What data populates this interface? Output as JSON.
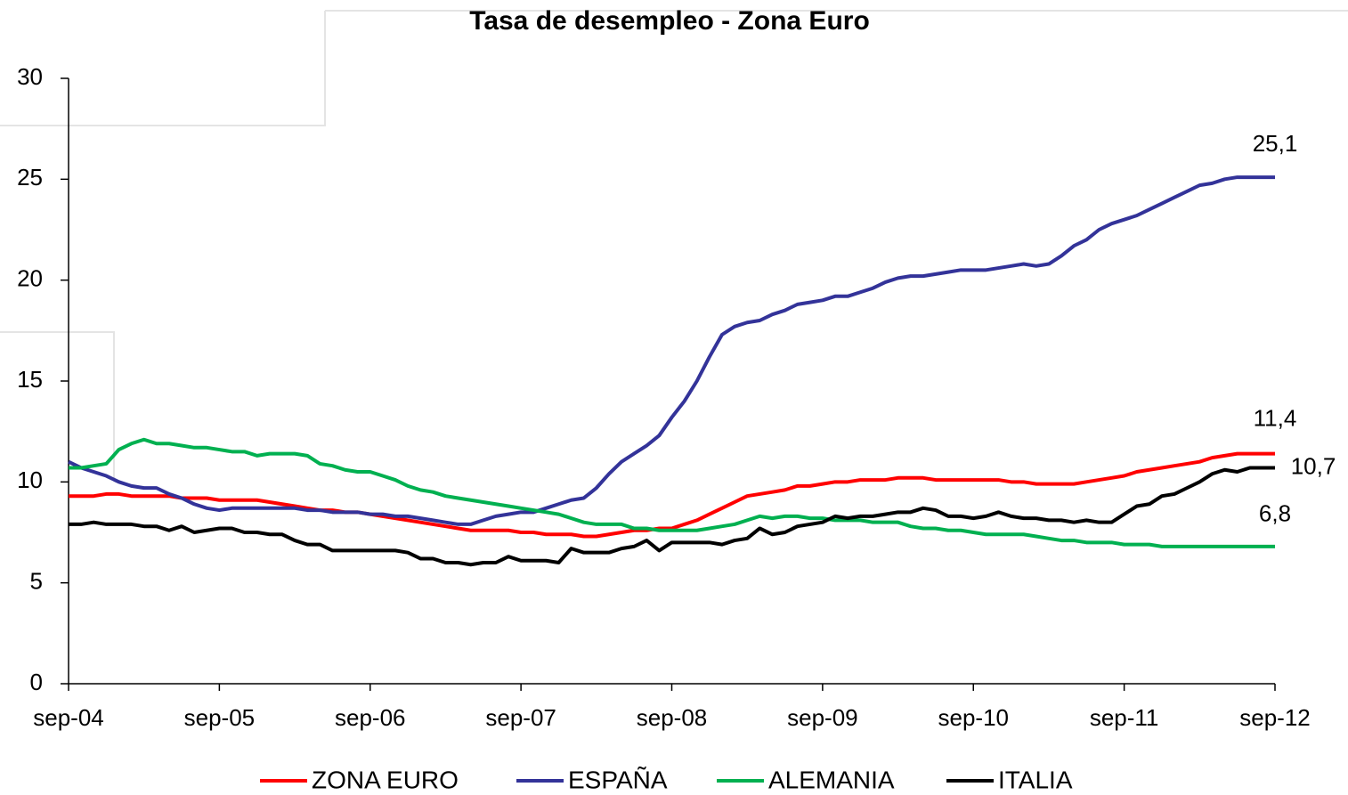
{
  "chart_data": {
    "type": "line",
    "title": "Tasa de desempleo - Zona Euro",
    "categories": [
      "sep-04",
      null,
      null,
      null,
      null,
      null,
      null,
      null,
      null,
      null,
      null,
      null,
      "sep-05",
      null,
      null,
      null,
      null,
      null,
      null,
      null,
      null,
      null,
      null,
      null,
      "sep-06",
      null,
      null,
      null,
      null,
      null,
      null,
      null,
      null,
      null,
      null,
      null,
      "sep-07",
      null,
      null,
      null,
      null,
      null,
      null,
      null,
      null,
      null,
      null,
      null,
      "sep-08",
      null,
      null,
      null,
      null,
      null,
      null,
      null,
      null,
      null,
      null,
      null,
      "sep-09",
      null,
      null,
      null,
      null,
      null,
      null,
      null,
      null,
      null,
      null,
      null,
      "sep-10",
      null,
      null,
      null,
      null,
      null,
      null,
      null,
      null,
      null,
      null,
      null,
      "sep-11",
      null,
      null,
      null,
      null,
      null,
      null,
      null,
      null,
      null,
      null,
      null,
      "sep-12"
    ],
    "ylim": [
      0,
      30
    ],
    "yticks": [
      0,
      5,
      10,
      15,
      20,
      25,
      30
    ],
    "grid": false,
    "legend": "bottom",
    "series": [
      {
        "name": "ZONA EURO",
        "color": "#ff0000",
        "last_label": "11,4",
        "values": [
          9.3,
          9.3,
          9.3,
          9.4,
          9.4,
          9.3,
          9.3,
          9.3,
          9.3,
          9.2,
          9.2,
          9.2,
          9.1,
          9.1,
          9.1,
          9.1,
          9.0,
          8.9,
          8.8,
          8.7,
          8.6,
          8.6,
          8.5,
          8.5,
          8.4,
          8.3,
          8.2,
          8.1,
          8.0,
          7.9,
          7.8,
          7.7,
          7.6,
          7.6,
          7.6,
          7.6,
          7.5,
          7.5,
          7.4,
          7.4,
          7.4,
          7.3,
          7.3,
          7.4,
          7.5,
          7.6,
          7.6,
          7.7,
          7.7,
          7.9,
          8.1,
          8.4,
          8.7,
          9.0,
          9.3,
          9.4,
          9.5,
          9.6,
          9.8,
          9.8,
          9.9,
          10.0,
          10.0,
          10.1,
          10.1,
          10.1,
          10.2,
          10.2,
          10.2,
          10.1,
          10.1,
          10.1,
          10.1,
          10.1,
          10.1,
          10.0,
          10.0,
          9.9,
          9.9,
          9.9,
          9.9,
          10.0,
          10.1,
          10.2,
          10.3,
          10.5,
          10.6,
          10.7,
          10.8,
          10.9,
          11.0,
          11.2,
          11.3,
          11.4,
          11.4,
          11.4,
          11.4
        ]
      },
      {
        "name": "ESPAÑA",
        "color": "#333399",
        "last_label": "25,1",
        "values": [
          11.0,
          10.7,
          10.5,
          10.3,
          10.0,
          9.8,
          9.7,
          9.7,
          9.4,
          9.2,
          8.9,
          8.7,
          8.6,
          8.7,
          8.7,
          8.7,
          8.7,
          8.7,
          8.7,
          8.6,
          8.6,
          8.5,
          8.5,
          8.5,
          8.4,
          8.4,
          8.3,
          8.3,
          8.2,
          8.1,
          8.0,
          7.9,
          7.9,
          8.1,
          8.3,
          8.4,
          8.5,
          8.5,
          8.7,
          8.9,
          9.1,
          9.2,
          9.7,
          10.4,
          11.0,
          11.4,
          11.8,
          12.3,
          13.2,
          14.0,
          15.0,
          16.2,
          17.3,
          17.7,
          17.9,
          18.0,
          18.3,
          18.5,
          18.8,
          18.9,
          19.0,
          19.2,
          19.2,
          19.4,
          19.6,
          19.9,
          20.1,
          20.2,
          20.2,
          20.3,
          20.4,
          20.5,
          20.5,
          20.5,
          20.6,
          20.7,
          20.8,
          20.7,
          20.8,
          21.2,
          21.7,
          22.0,
          22.5,
          22.8,
          23.0,
          23.2,
          23.5,
          23.8,
          24.1,
          24.4,
          24.7,
          24.8,
          25.0,
          25.1,
          25.1,
          25.1,
          25.1
        ]
      },
      {
        "name": "ALEMANIA",
        "color": "#00b050",
        "last_label": "6,8",
        "values": [
          10.7,
          10.7,
          10.8,
          10.9,
          11.6,
          11.9,
          12.1,
          11.9,
          11.9,
          11.8,
          11.7,
          11.7,
          11.6,
          11.5,
          11.5,
          11.3,
          11.4,
          11.4,
          11.4,
          11.3,
          10.9,
          10.8,
          10.6,
          10.5,
          10.5,
          10.3,
          10.1,
          9.8,
          9.6,
          9.5,
          9.3,
          9.2,
          9.1,
          9.0,
          8.9,
          8.8,
          8.7,
          8.6,
          8.5,
          8.4,
          8.2,
          8.0,
          7.9,
          7.9,
          7.9,
          7.7,
          7.7,
          7.6,
          7.6,
          7.6,
          7.6,
          7.7,
          7.8,
          7.9,
          8.1,
          8.3,
          8.2,
          8.3,
          8.3,
          8.2,
          8.2,
          8.1,
          8.1,
          8.1,
          8.0,
          8.0,
          8.0,
          7.8,
          7.7,
          7.7,
          7.6,
          7.6,
          7.5,
          7.4,
          7.4,
          7.4,
          7.4,
          7.3,
          7.2,
          7.1,
          7.1,
          7.0,
          7.0,
          7.0,
          6.9,
          6.9,
          6.9,
          6.8,
          6.8,
          6.8,
          6.8,
          6.8,
          6.8,
          6.8,
          6.8,
          6.8,
          6.8
        ]
      },
      {
        "name": "ITALIA",
        "color": "#000000",
        "last_label": "10,7",
        "values": [
          7.9,
          7.9,
          8.0,
          7.9,
          7.9,
          7.9,
          7.8,
          7.8,
          7.6,
          7.8,
          7.5,
          7.6,
          7.7,
          7.7,
          7.5,
          7.5,
          7.4,
          7.4,
          7.1,
          6.9,
          6.9,
          6.6,
          6.6,
          6.6,
          6.6,
          6.6,
          6.6,
          6.5,
          6.2,
          6.2,
          6.0,
          6.0,
          5.9,
          6.0,
          6.0,
          6.3,
          6.1,
          6.1,
          6.1,
          6.0,
          6.7,
          6.5,
          6.5,
          6.5,
          6.7,
          6.8,
          7.1,
          6.6,
          7.0,
          7.0,
          7.0,
          7.0,
          6.9,
          7.1,
          7.2,
          7.7,
          7.4,
          7.5,
          7.8,
          7.9,
          8.0,
          8.3,
          8.2,
          8.3,
          8.3,
          8.4,
          8.5,
          8.5,
          8.7,
          8.6,
          8.3,
          8.3,
          8.2,
          8.3,
          8.5,
          8.3,
          8.2,
          8.2,
          8.1,
          8.1,
          8.0,
          8.1,
          8.0,
          8.0,
          8.4,
          8.8,
          8.9,
          9.3,
          9.4,
          9.7,
          10.0,
          10.4,
          10.6,
          10.5,
          10.7,
          10.7,
          10.7
        ]
      }
    ]
  }
}
